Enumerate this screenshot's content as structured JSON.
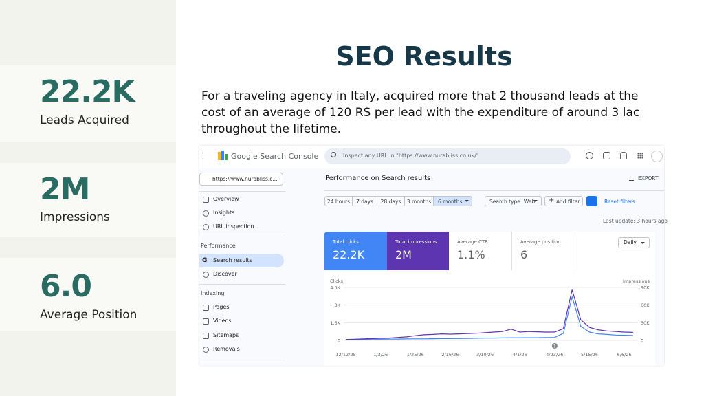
{
  "sidebar_stats": [
    {
      "value": "22.2K",
      "label": "Leads Acquired"
    },
    {
      "value": "2M",
      "label": "Impressions"
    },
    {
      "value": "6.0",
      "label": "Average Position"
    }
  ],
  "title": "SEO Results",
  "description": "For a traveling agency in Italy, acquired more that 2 thousand leads at the cost of an average of 120 RS per lead with the expenditure of around 3 lac throughout the lifetime.",
  "console": {
    "brand": "Google Search Console",
    "search_placeholder": "Inspect any URL in \"https://www.nurabliss.co.uk/\"",
    "property": "https://www.nurabliss.c...",
    "nav_top": [
      "Overview",
      "Insights",
      "URL inspection"
    ],
    "nav_groups": [
      {
        "title": "Performance",
        "items": [
          "Search results",
          "Discover"
        ]
      },
      {
        "title": "Indexing",
        "items": [
          "Pages",
          "Videos",
          "Sitemaps",
          "Removals"
        ]
      }
    ],
    "page_title": "Performance on Search results",
    "export": "EXPORT",
    "date_ranges": [
      "24 hours",
      "7 days",
      "28 days",
      "3 months",
      "6 months"
    ],
    "search_type": "Search type: Web",
    "add_filter": "Add filter",
    "reset": "Reset filters",
    "last_update": "Last update: 3 hours ago",
    "metrics": [
      {
        "label": "Total clicks",
        "value": "22.2K"
      },
      {
        "label": "Total impressions",
        "value": "2M"
      },
      {
        "label": "Average CTR",
        "value": "1.1%"
      },
      {
        "label": "Average position",
        "value": "6"
      }
    ],
    "granularity": "Daily"
  },
  "chart_data": {
    "type": "line",
    "categories": [
      "12/12/25",
      null,
      null,
      null,
      "1/3/26",
      null,
      null,
      null,
      "1/25/26",
      null,
      null,
      null,
      "2/16/26",
      null,
      null,
      null,
      "3/10/26",
      null,
      null,
      null,
      "4/1/26",
      null,
      null,
      null,
      "4/23/26",
      null,
      null,
      null,
      "5/15/26",
      null,
      null,
      null,
      "6/6/26",
      null
    ],
    "series": [
      {
        "name": "Clicks",
        "color": "#4285f4",
        "values": [
          80,
          90,
          90,
          100,
          100,
          110,
          110,
          120,
          130,
          130,
          140,
          150,
          150,
          160,
          170,
          180,
          200,
          200,
          210,
          220,
          220,
          230,
          230,
          240,
          250,
          600,
          3700,
          1200,
          700,
          550,
          500,
          450,
          430,
          420
        ]
      },
      {
        "name": "Impressions",
        "color": "#5e35b1",
        "axis": "y2",
        "values": [
          1500,
          2000,
          2500,
          3000,
          3500,
          4000,
          5000,
          6000,
          8000,
          9500,
          10000,
          11000,
          10500,
          11000,
          11500,
          12000,
          13000,
          14000,
          15000,
          19000,
          14000,
          15000,
          14500,
          14000,
          14000,
          20000,
          86000,
          35000,
          22000,
          18000,
          16000,
          15000,
          14000,
          13500
        ]
      }
    ],
    "ylim": [
      0,
      4500
    ],
    "yticks": [
      0,
      {
        "value": 1500,
        "label": "1.5K"
      },
      {
        "value": 3000,
        "label": "3K"
      },
      {
        "value": 4500,
        "label": "4.5K"
      }
    ],
    "y2lim": [
      0,
      90000
    ],
    "y2ticks": [
      0,
      {
        "value": 30000,
        "label": "30K"
      },
      {
        "value": 60000,
        "label": "60K"
      },
      {
        "value": 90000,
        "label": "90K"
      }
    ],
    "annotation": "1",
    "grid": true
  }
}
